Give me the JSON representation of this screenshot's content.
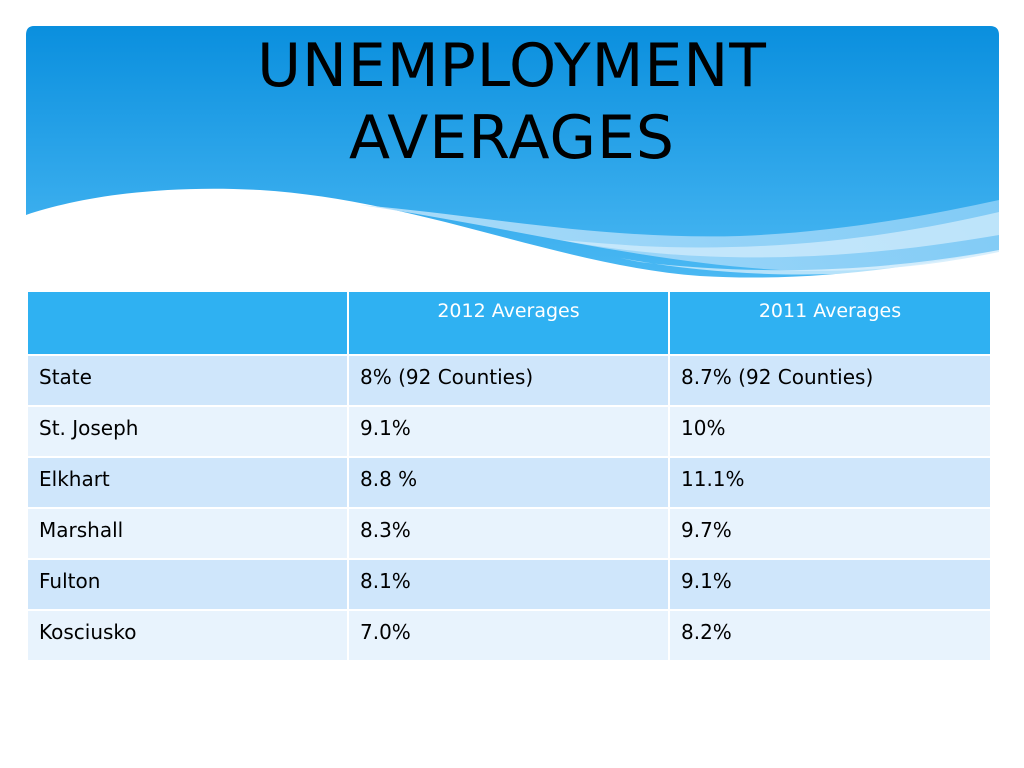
{
  "slide": {
    "title_line1": "UNEMPLOYMENT",
    "title_line2": "AVERAGES",
    "accent_color": "#2fb1f2",
    "header_gradient": [
      "#0a8fde",
      "#5fc4f5"
    ]
  },
  "table": {
    "headers": [
      "",
      "2012 Averages",
      "2011 Averages"
    ],
    "rows": [
      {
        "region": "State",
        "avg_2012": "8% (92 Counties)",
        "avg_2011": "8.7% (92 Counties)"
      },
      {
        "region": "St. Joseph",
        "avg_2012": "9.1%",
        "avg_2011": "10%"
      },
      {
        "region": "Elkhart",
        "avg_2012": "8.8 %",
        "avg_2011": "11.1%"
      },
      {
        "region": "Marshall",
        "avg_2012": "8.3%",
        "avg_2011": "9.7%"
      },
      {
        "region": "Fulton",
        "avg_2012": "8.1%",
        "avg_2011": "9.1%"
      },
      {
        "region": "Kosciusko",
        "avg_2012": "7.0%",
        "avg_2011": "8.2%"
      }
    ]
  }
}
